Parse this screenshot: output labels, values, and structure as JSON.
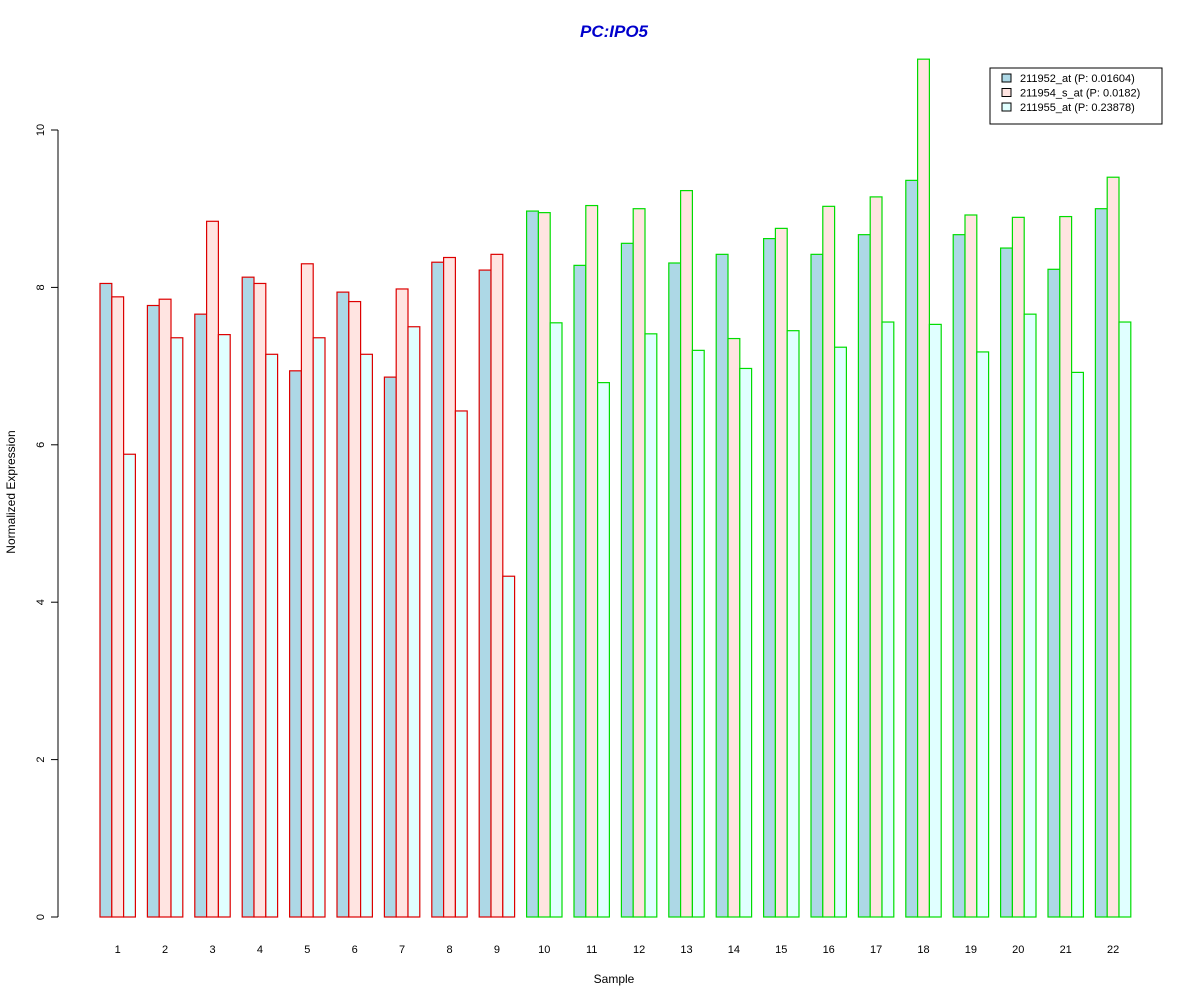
{
  "chart_data": {
    "type": "bar",
    "title": "PC:IPO5",
    "xlabel": "Sample",
    "ylabel": "Normalized Expression",
    "ylim": [
      0,
      11
    ],
    "yticks": [
      0,
      2,
      4,
      6,
      8,
      10
    ],
    "grid": false,
    "legend_position": "top-right",
    "categories": [
      "1",
      "2",
      "3",
      "4",
      "5",
      "6",
      "7",
      "8",
      "9",
      "10",
      "11",
      "12",
      "13",
      "14",
      "15",
      "16",
      "17",
      "18",
      "19",
      "20",
      "21",
      "22"
    ],
    "group_of_category": [
      "A",
      "A",
      "A",
      "A",
      "A",
      "A",
      "A",
      "A",
      "A",
      "B",
      "B",
      "B",
      "B",
      "B",
      "B",
      "B",
      "B",
      "B",
      "B",
      "B",
      "B",
      "B"
    ],
    "series": [
      {
        "name": "211952_at (P: 0.01604)",
        "fill": "#add8e6",
        "values": [
          8.05,
          7.77,
          7.66,
          8.13,
          6.94,
          7.94,
          6.86,
          8.32,
          8.22,
          8.97,
          8.28,
          8.56,
          8.31,
          8.42,
          8.62,
          8.42,
          8.67,
          9.36,
          8.67,
          8.5,
          8.23,
          9.0
        ]
      },
      {
        "name": "211954_s_at (P: 0.0182)",
        "fill": "#ffe4e1",
        "values": [
          7.88,
          7.85,
          8.84,
          8.05,
          8.3,
          7.82,
          7.98,
          8.38,
          8.42,
          8.95,
          9.04,
          9.0,
          9.23,
          7.35,
          8.75,
          9.03,
          9.15,
          10.9,
          8.92,
          8.89,
          8.9,
          9.4
        ]
      },
      {
        "name": "211955_at (P: 0.23878)",
        "fill": "#e0ffff",
        "values": [
          5.88,
          7.36,
          7.4,
          7.15,
          7.36,
          7.15,
          7.5,
          6.43,
          4.33,
          7.55,
          6.79,
          7.41,
          7.2,
          6.97,
          7.45,
          7.24,
          7.56,
          7.53,
          7.18,
          7.66,
          6.92,
          7.56
        ]
      }
    ],
    "group_border_colors": {
      "A": "#dd0000",
      "B": "#00dd00"
    },
    "legend_fills": [
      "#add8e6",
      "#ffe4e1",
      "#e0ffff"
    ]
  },
  "colors": {
    "title": "#0000cc",
    "axis": "#000000"
  }
}
